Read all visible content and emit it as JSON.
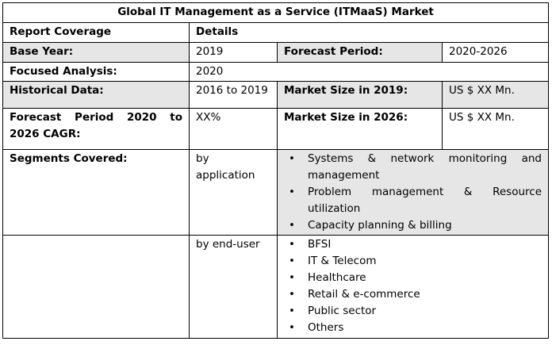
{
  "title": "Global IT Management as a Service (ITMaaS) Market",
  "header": {
    "col1": "Report Coverage",
    "col2": "Details"
  },
  "base_year": {
    "label": "Base Year:",
    "value": "2019",
    "forecast_label": "Forecast Period:",
    "forecast_value": "2020-2026"
  },
  "focused_analysis": {
    "label": "Focused Analysis:",
    "value": "2020"
  },
  "historical": {
    "label": "Historical Data:",
    "value": "2016 to 2019",
    "market_label": "Market Size in 2019:",
    "market_value": "US $ XX Mn."
  },
  "forecast_cagr": {
    "label": "Forecast Period 2020 to 2026 CAGR:",
    "value": "XX%",
    "market_label": "Market Size in 2026:",
    "market_value": "US $ XX Mn."
  },
  "segments": {
    "label": "Segments Covered:",
    "bullet": "•",
    "by_application": {
      "label": "by application",
      "items": [
        "Systems & network monitoring and management",
        "Problem management & Resource utilization",
        "Capacity planning & billing"
      ]
    },
    "by_end_user": {
      "label": "by end-user",
      "items": [
        "BFSI",
        "IT & Telecom",
        "Healthcare",
        "Retail & e-commerce",
        "Public sector",
        "Others"
      ]
    }
  }
}
